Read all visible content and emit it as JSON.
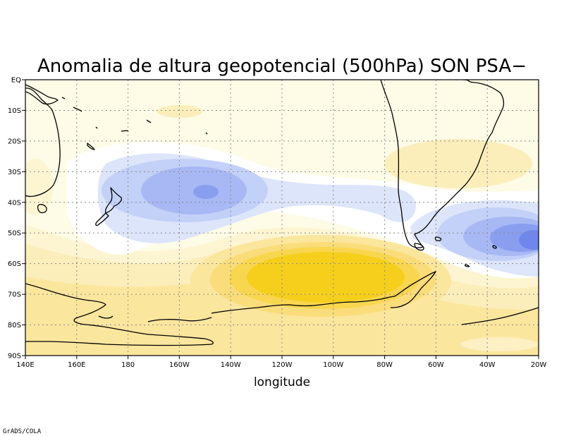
{
  "title": "Anomalia de altura geopotencial (500hPa) SON PSA−",
  "x_axis": {
    "label": "longitude",
    "ticks": [
      "140E",
      "160E",
      "180",
      "160W",
      "140W",
      "120W",
      "100W",
      "80W",
      "60W",
      "40W",
      "20W"
    ]
  },
  "y_axis": {
    "ticks": [
      "EQ",
      "10S",
      "20S",
      "30S",
      "40S",
      "50S",
      "60S",
      "70S",
      "80S",
      "90S"
    ]
  },
  "credit": "GrADS/COLA",
  "colors": {
    "background_fill": "#fefbe6",
    "positive_levels": [
      "#fdf5d2",
      "#fceebb",
      "#fbe69e",
      "#fadd7a",
      "#f8d64f",
      "#f5cf1b"
    ],
    "negative_levels": [
      "#dde5fb",
      "#c3d0f8",
      "#a8b8f4",
      "#8a9ef0",
      "#6f87ec"
    ],
    "zero_band": "#ffffff"
  }
}
